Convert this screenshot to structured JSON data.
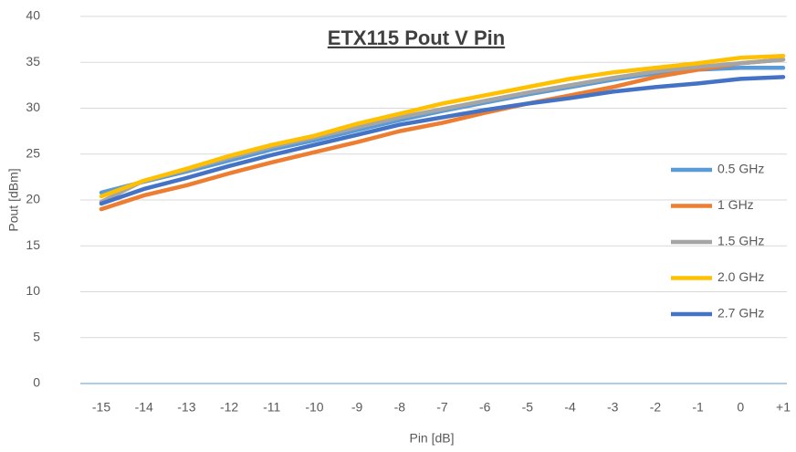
{
  "chart_data": {
    "type": "line",
    "title": "ETX115 Pout V Pin",
    "x_label": "Pin [dB]",
    "y_label": "Pout [dBm]",
    "categories": [
      "-15",
      "-14",
      "-13",
      "-12",
      "-11",
      "-10",
      "-9",
      "-8",
      "-7",
      "-6",
      "-5",
      "-4",
      "-3",
      "-2",
      "-1",
      "0",
      "+1"
    ],
    "series": [
      {
        "name": "0.5 GHz",
        "color": "#5b9bd5",
        "values": [
          20.8,
          22.0,
          23.1,
          24.3,
          25.5,
          26.5,
          27.6,
          28.7,
          29.7,
          30.6,
          31.5,
          32.3,
          33.1,
          33.8,
          34.2,
          34.4,
          34.4
        ]
      },
      {
        "name": "1 GHz",
        "color": "#ed7d31",
        "values": [
          19.0,
          20.5,
          21.6,
          22.9,
          24.1,
          25.2,
          26.3,
          27.5,
          28.4,
          29.5,
          30.5,
          31.4,
          32.3,
          33.4,
          34.2,
          34.9,
          35.3
        ]
      },
      {
        "name": "1.5 GHz",
        "color": "#a5a5a5",
        "values": [
          19.8,
          22.1,
          23.3,
          24.6,
          25.8,
          26.8,
          27.9,
          29.0,
          29.9,
          30.8,
          31.7,
          32.5,
          33.3,
          34.0,
          34.5,
          34.9,
          35.3
        ]
      },
      {
        "name": "2.0 GHz",
        "color": "#ffc000",
        "values": [
          20.4,
          22.1,
          23.4,
          24.8,
          26.0,
          27.0,
          28.3,
          29.4,
          30.5,
          31.4,
          32.3,
          33.2,
          33.9,
          34.4,
          34.9,
          35.5,
          35.7
        ]
      },
      {
        "name": "2.7 GHz",
        "color": "#4472c4",
        "values": [
          19.6,
          21.2,
          22.4,
          23.7,
          24.9,
          26.0,
          27.1,
          28.2,
          29.0,
          29.8,
          30.5,
          31.1,
          31.8,
          32.3,
          32.7,
          33.2,
          33.4
        ]
      }
    ],
    "ylim": [
      0,
      40
    ],
    "yticks": [
      0,
      5,
      10,
      15,
      20,
      25,
      30,
      35,
      40
    ],
    "grid": true,
    "legend": "right"
  }
}
